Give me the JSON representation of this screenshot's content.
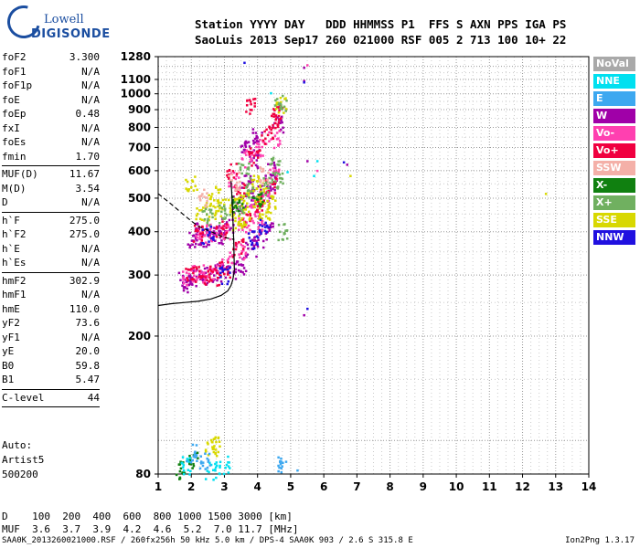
{
  "logo": {
    "brand": "Lowell",
    "product": "DIGISONDE"
  },
  "header": {
    "line1": "Station YYYY DAY   DDD HHMMSS P1  FFS S AXN PPS IGA PS",
    "line2": "SaoLuis 2013 Sep17 260 021000 RSF 005 2 713 100 10+ 22"
  },
  "params": [
    {
      "k": "foF2",
      "v": "3.300"
    },
    {
      "k": "foF1",
      "v": "N/A"
    },
    {
      "k": "foF1p",
      "v": "N/A"
    },
    {
      "k": "foE",
      "v": "N/A"
    },
    {
      "k": "foEp",
      "v": "0.48"
    },
    {
      "k": "fxI",
      "v": "N/A"
    },
    {
      "k": "foEs",
      "v": "N/A"
    },
    {
      "k": "fmin",
      "v": "1.70"
    },
    {
      "sep": true
    },
    {
      "k": "MUF(D)",
      "v": "11.67"
    },
    {
      "k": "M(D)",
      "v": "3.54"
    },
    {
      "k": "D",
      "v": "N/A"
    },
    {
      "sep": true
    },
    {
      "k": "h`F",
      "v": "275.0"
    },
    {
      "k": "h`F2",
      "v": "275.0"
    },
    {
      "k": "h`E",
      "v": "N/A"
    },
    {
      "k": "h`Es",
      "v": "N/A"
    },
    {
      "sep": true
    },
    {
      "k": "hmF2",
      "v": "302.9"
    },
    {
      "k": "hmF1",
      "v": "N/A"
    },
    {
      "k": "hmE",
      "v": "110.0"
    },
    {
      "k": "yF2",
      "v": "73.6"
    },
    {
      "k": "yF1",
      "v": "N/A"
    },
    {
      "k": "yE",
      "v": "20.0"
    },
    {
      "k": "B0",
      "v": "59.8"
    },
    {
      "k": "B1",
      "v": "5.47"
    },
    {
      "sep": true
    },
    {
      "k": "C-level",
      "v": "44"
    },
    {
      "sep": true
    }
  ],
  "auto": {
    "line1": "Auto:",
    "line2": "Artist5",
    "line3": "500200"
  },
  "legend": [
    {
      "label": "NoVal",
      "color": "#a9a9a9"
    },
    {
      "label": "NNE",
      "color": "#00e0f0"
    },
    {
      "label": "E",
      "color": "#3da8f0"
    },
    {
      "label": "W",
      "color": "#a000a8"
    },
    {
      "label": "Vo-",
      "color": "#ff40b0"
    },
    {
      "label": "Vo+",
      "color": "#f00040"
    },
    {
      "label": "SSW",
      "color": "#f4b0a8"
    },
    {
      "label": "X-",
      "color": "#108010"
    },
    {
      "label": "X+",
      "color": "#70b060"
    },
    {
      "label": "SSE",
      "color": "#d8d800"
    },
    {
      "label": "NNW",
      "color": "#2010e0"
    }
  ],
  "bottom": {
    "line1": "D    100  200  400  600  800 1000 1500 3000 [km]",
    "line2": "MUF  3.6  3.7  3.9  4.2  4.6  5.2  7.0 11.7 [MHz]"
  },
  "footer": "SAA0K_2013260021000.RSF / 260fx256h 50 kHz 5.0 km / DPS-4 SAA0K 903 / 2.6 S 315.8 E",
  "version": "Ion2Png 1.3.17",
  "chart_data": {
    "type": "scatter",
    "title": "",
    "xlabel": "",
    "ylabel": "",
    "xlim": [
      1,
      14
    ],
    "ylim": [
      80,
      1280
    ],
    "x_ticks": [
      1,
      2,
      3,
      4,
      5,
      6,
      7,
      8,
      9,
      10,
      11,
      12,
      13,
      14
    ],
    "y_ticks": [
      80,
      200,
      300,
      400,
      500,
      600,
      700,
      800,
      900,
      1000,
      1100,
      1280
    ],
    "grid": true,
    "legend_position": "right",
    "series": [
      {
        "name": "W",
        "color": "#a000a8",
        "points": [
          [
            1.8,
            290
          ],
          [
            2.0,
            295
          ],
          [
            2.3,
            300
          ],
          [
            2.6,
            300
          ],
          [
            2.9,
            305
          ],
          [
            3.2,
            310
          ],
          [
            3.5,
            320
          ],
          [
            3.8,
            360
          ],
          [
            4.0,
            380
          ],
          [
            4.3,
            400
          ],
          [
            2.0,
            380
          ],
          [
            2.4,
            385
          ],
          [
            2.8,
            390
          ],
          [
            3.4,
            480
          ],
          [
            3.8,
            500
          ],
          [
            4.2,
            520
          ],
          [
            4.4,
            600
          ],
          [
            3.6,
            700
          ],
          [
            4.0,
            760
          ],
          [
            4.6,
            820
          ],
          [
            5.4,
            1190
          ],
          [
            5.4,
            1090
          ],
          [
            5.5,
            640
          ],
          [
            6.7,
            625
          ],
          [
            5.4,
            230
          ],
          [
            2.1,
            400
          ],
          [
            2.7,
            395
          ],
          [
            3.1,
            420
          ],
          [
            3.9,
            650
          ],
          [
            4.4,
            560
          ],
          [
            1.9,
            285
          ],
          [
            3.7,
            550
          ]
        ]
      },
      {
        "name": "Vo-",
        "color": "#ff40b0",
        "points": [
          [
            1.9,
            298
          ],
          [
            2.2,
            302
          ],
          [
            2.5,
            305
          ],
          [
            2.8,
            310
          ],
          [
            3.1,
            330
          ],
          [
            3.6,
            420
          ],
          [
            3.9,
            470
          ],
          [
            4.2,
            500
          ],
          [
            4.5,
            580
          ],
          [
            3.3,
            560
          ],
          [
            3.7,
            650
          ],
          [
            4.1,
            700
          ],
          [
            4.5,
            740
          ],
          [
            5.5,
            1210
          ],
          [
            5.8,
            600
          ],
          [
            2.3,
            390
          ],
          [
            2.6,
            400
          ],
          [
            3.0,
            395
          ],
          [
            4.0,
            420
          ],
          [
            3.5,
            350
          ]
        ]
      },
      {
        "name": "Vo+",
        "color": "#f00040",
        "points": [
          [
            2.0,
            300
          ],
          [
            2.4,
            300
          ],
          [
            2.7,
            298
          ],
          [
            3.0,
            310
          ],
          [
            3.4,
            360
          ],
          [
            3.7,
            440
          ],
          [
            4.1,
            480
          ],
          [
            4.4,
            540
          ],
          [
            3.2,
            600
          ],
          [
            3.9,
            660
          ],
          [
            4.3,
            760
          ],
          [
            4.5,
            830
          ],
          [
            4.6,
            880
          ],
          [
            3.8,
            920
          ],
          [
            2.2,
            395
          ],
          [
            2.9,
            410
          ],
          [
            3.5,
            520
          ]
        ]
      },
      {
        "name": "SSE",
        "color": "#d8d800",
        "points": [
          [
            2.3,
            455
          ],
          [
            2.6,
            460
          ],
          [
            2.9,
            470
          ],
          [
            3.2,
            475
          ],
          [
            3.5,
            490
          ],
          [
            3.8,
            500
          ],
          [
            4.1,
            510
          ],
          [
            4.4,
            480
          ],
          [
            2.7,
            520
          ],
          [
            3.6,
            440
          ],
          [
            4.2,
            460
          ],
          [
            2.6,
            95
          ],
          [
            2.7,
            97
          ],
          [
            12.7,
            515
          ],
          [
            6.8,
            580
          ],
          [
            4.7,
            920
          ],
          [
            2.0,
            550
          ],
          [
            3.4,
            430
          ],
          [
            4.0,
            560
          ]
        ]
      },
      {
        "name": "X+",
        "color": "#70b060",
        "points": [
          [
            3.0,
            450
          ],
          [
            3.4,
            470
          ],
          [
            3.8,
            520
          ],
          [
            4.2,
            540
          ],
          [
            4.6,
            560
          ],
          [
            2.5,
            440
          ],
          [
            3.6,
            600
          ],
          [
            4.5,
            620
          ],
          [
            4.7,
            950
          ],
          [
            4.8,
            400
          ]
        ]
      },
      {
        "name": "X-",
        "color": "#108010",
        "points": [
          [
            1.7,
            82
          ],
          [
            2.1,
            88
          ],
          [
            3.4,
            480
          ],
          [
            4.0,
            500
          ]
        ]
      },
      {
        "name": "NNE",
        "color": "#00e0f0",
        "points": [
          [
            4.4,
            1005
          ],
          [
            5.7,
            580
          ],
          [
            5.8,
            640
          ],
          [
            1.8,
            85
          ],
          [
            2.6,
            82
          ],
          [
            3.0,
            85
          ],
          [
            4.9,
            595
          ]
        ]
      },
      {
        "name": "E",
        "color": "#3da8f0",
        "points": [
          [
            2.0,
            92
          ],
          [
            2.4,
            88
          ],
          [
            4.7,
            85
          ],
          [
            5.2,
            82
          ]
        ]
      },
      {
        "name": "SSW",
        "color": "#f4b0a8",
        "points": [
          [
            3.3,
            560
          ],
          [
            4.2,
            580
          ],
          [
            2.4,
            500
          ]
        ]
      },
      {
        "name": "NNW",
        "color": "#2010e0",
        "points": [
          [
            3.6,
            1230
          ],
          [
            5.4,
            1080
          ],
          [
            6.6,
            635
          ],
          [
            5.5,
            240
          ],
          [
            2.5,
            392
          ],
          [
            3.0,
            300
          ],
          [
            3.9,
            380
          ],
          [
            4.2,
            420
          ]
        ]
      }
    ],
    "trace_curve": {
      "x": [
        1.0,
        1.4,
        1.8,
        2.2,
        2.6,
        2.9,
        3.1,
        3.2,
        3.25,
        3.28,
        3.3
      ],
      "y": [
        245,
        248,
        250,
        252,
        256,
        262,
        270,
        280,
        290,
        300,
        310
      ]
    },
    "profile_curve": {
      "x": [
        3.3,
        3.28,
        3.25,
        3.22,
        3.2
      ],
      "y": [
        310,
        380,
        450,
        520,
        560
      ]
    },
    "dashed_curve": {
      "x": [
        1.0,
        1.4,
        1.8,
        2.2,
        2.6,
        3.0,
        3.3
      ],
      "y": [
        515,
        480,
        445,
        415,
        400,
        385,
        380
      ]
    }
  }
}
